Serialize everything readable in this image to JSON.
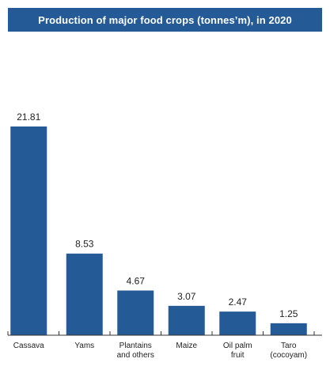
{
  "title": "Production of major food crops (tonnes’m), in 2020",
  "colors": {
    "accent": "#245a95",
    "bar": "#245a95",
    "axis": "#333333"
  },
  "chart_data": {
    "type": "bar",
    "title": "Production of major food crops (tonnes’m), in 2020",
    "categories": [
      "Cassava",
      "Yams",
      "Plantains and others",
      "Maize",
      "Oil palm fruit",
      "Taro (cocoyam)"
    ],
    "category_lines": [
      [
        "Cassava"
      ],
      [
        "Yams"
      ],
      [
        "Plantains",
        "and others"
      ],
      [
        "Maize"
      ],
      [
        "Oil palm",
        "fruit"
      ],
      [
        "Taro",
        "(cocoyam)"
      ]
    ],
    "values": [
      21.81,
      8.53,
      4.67,
      3.07,
      2.47,
      1.25
    ],
    "value_labels": [
      "21.81",
      "8.53",
      "4.67",
      "3.07",
      "2.47",
      "1.25"
    ],
    "xlabel": "",
    "ylabel": "",
    "ylim": [
      0,
      21.81
    ],
    "grid": false,
    "legend": "none"
  }
}
